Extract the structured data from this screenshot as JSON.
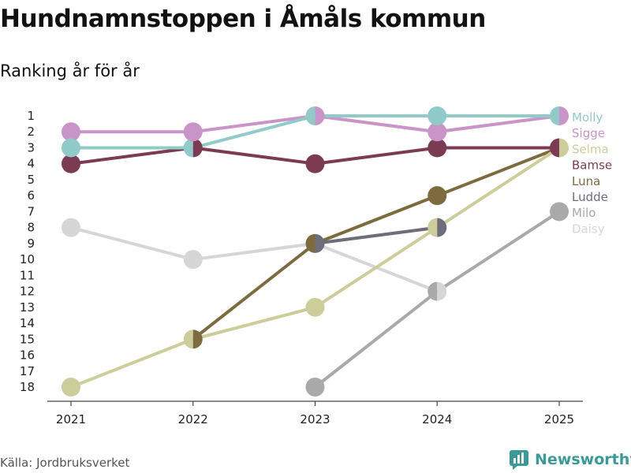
{
  "header": {
    "title": "Hundnamnstoppen i Åmåls kommun",
    "subtitle": "Ranking år för år"
  },
  "footer": {
    "source": "Källa: Jordbruksverket",
    "brand": "Newsworthy"
  },
  "chart_data": {
    "type": "line",
    "title": "Hundnamnstoppen i Åmåls kommun",
    "subtitle": "Ranking år för år",
    "x": [
      "2021",
      "2022",
      "2023",
      "2024",
      "2025"
    ],
    "y_ticks": [
      1,
      2,
      3,
      4,
      5,
      6,
      7,
      8,
      9,
      10,
      11,
      12,
      13,
      14,
      15,
      16,
      17,
      18
    ],
    "ylim": [
      1,
      18
    ],
    "y_inverted": true,
    "series": [
      {
        "name": "Daisy",
        "color": "#d6d6d6",
        "values": [
          8,
          10,
          9,
          12,
          null
        ]
      },
      {
        "name": "Milo",
        "color": "#a9a9a9",
        "values": [
          null,
          null,
          18,
          12,
          7
        ]
      },
      {
        "name": "Ludde",
        "color": "#6e6e7a",
        "values": [
          null,
          null,
          9,
          8,
          null
        ]
      },
      {
        "name": "Luna",
        "color": "#7d6b3e",
        "values": [
          null,
          15,
          9,
          6,
          3
        ]
      },
      {
        "name": "Selma",
        "color": "#cccd99",
        "values": [
          18,
          15,
          13,
          8,
          3
        ]
      },
      {
        "name": "Bamse",
        "color": "#7b3b52",
        "values": [
          4,
          3,
          4,
          3,
          3
        ]
      },
      {
        "name": "Sigge",
        "color": "#c994c7",
        "values": [
          2,
          2,
          1,
          2,
          1
        ]
      },
      {
        "name": "Molly",
        "color": "#91cbc9",
        "values": [
          3,
          3,
          1,
          1,
          1
        ]
      }
    ],
    "legend": [
      "Molly",
      "Sigge",
      "Selma",
      "Bamse",
      "Luna",
      "Ludde",
      "Milo",
      "Daisy"
    ],
    "legend_placement": "right"
  }
}
